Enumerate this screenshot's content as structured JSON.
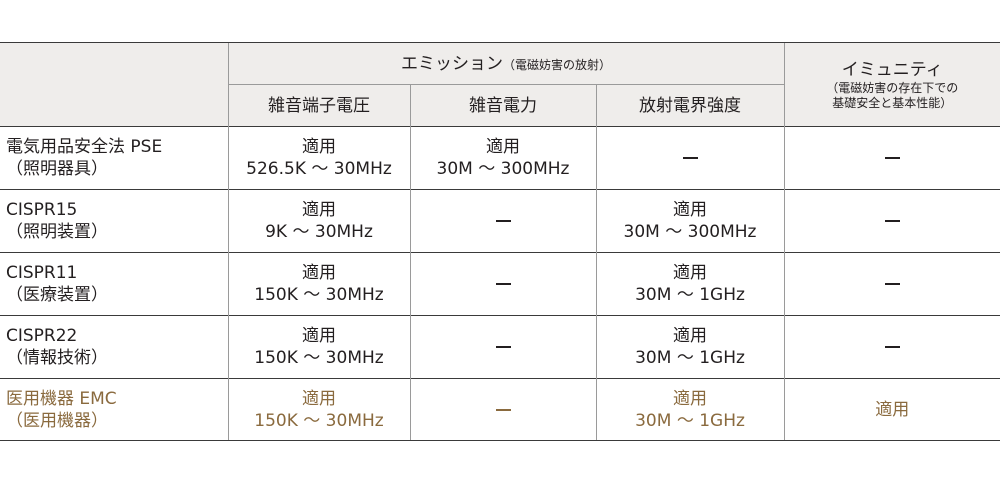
{
  "header": {
    "emission": "エミッション",
    "emission_note": "（電磁妨害の放射）",
    "immunity": "イミュニティ",
    "immunity_note_1": "（電磁妨害の存在下での",
    "immunity_note_2": "基礎安全と基本性能）",
    "col_conducted_voltage": "雑音端子電圧",
    "col_disturbance_power": "雑音電力",
    "col_radiated_field": "放射電界強度"
  },
  "rows": [
    {
      "name_1": "電気用品安全法 PSE",
      "name_2": "（照明器具）",
      "c1_1": "適用",
      "c1_2": "526.5K ～ 30MHz",
      "c2_1": "適用",
      "c2_2": "30M ～ 300MHz",
      "c3": "",
      "c4": ""
    },
    {
      "name_1": "CISPR15",
      "name_2": "（照明装置）",
      "c1_1": "適用",
      "c1_2": "9K ～ 30MHz",
      "c2": "",
      "c3_1": "適用",
      "c3_2": "30M ～ 300MHz",
      "c4": ""
    },
    {
      "name_1": "CISPR11",
      "name_2": "（医療装置）",
      "c1_1": "適用",
      "c1_2": "150K ～ 30MHz",
      "c2": "",
      "c3_1": "適用",
      "c3_2": "30M ～ 1GHz",
      "c4": ""
    },
    {
      "name_1": "CISPR22",
      "name_2": "（情報技術）",
      "c1_1": "適用",
      "c1_2": "150K ～ 30MHz",
      "c2": "",
      "c3_1": "適用",
      "c3_2": "30M ～ 1GHz",
      "c4": ""
    },
    {
      "name_1": "医用機器 EMC",
      "name_2": "（医用機器）",
      "c1_1": "適用",
      "c1_2": "150K ～ 30MHz",
      "c2": "",
      "c3_1": "適用",
      "c3_2": "30M ～ 1GHz",
      "c4": "適用"
    }
  ],
  "colors": {
    "text": "#231f20",
    "highlight": "#8a6a3e",
    "header_bg": "#efedeb"
  }
}
